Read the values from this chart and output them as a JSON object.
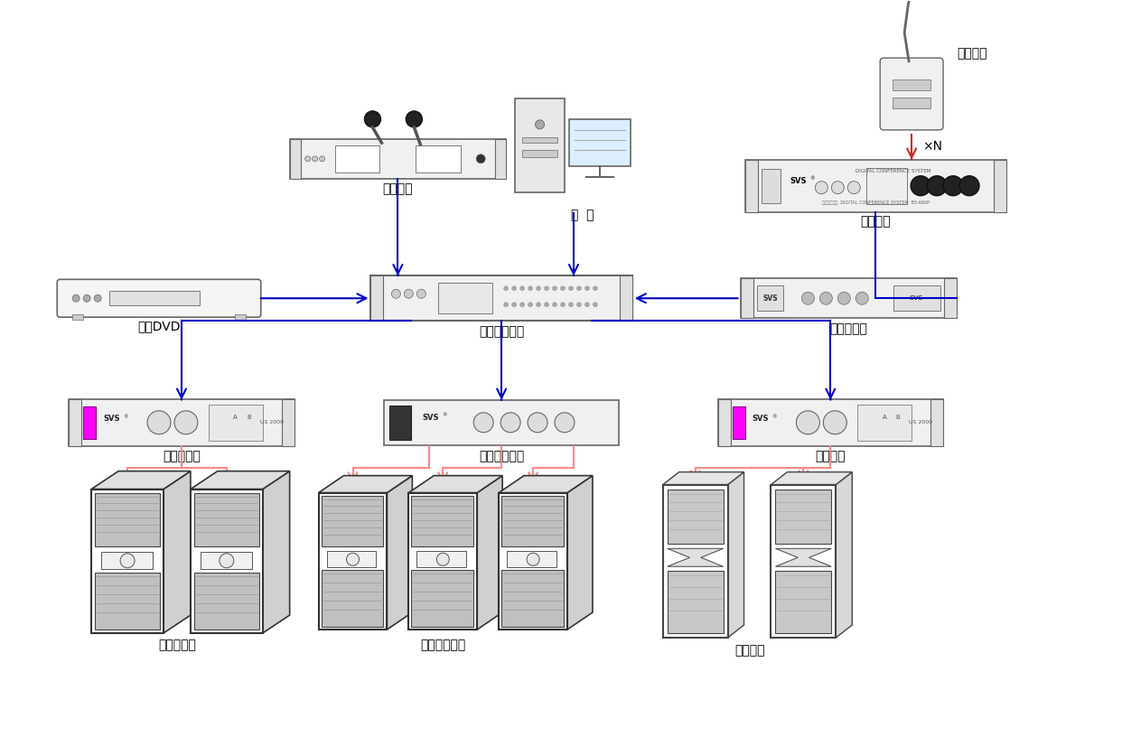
{
  "bg_color": "#ffffff",
  "blue": "#0000cc",
  "red": "#ff8888",
  "dark_red": "#cc2222",
  "gray": "#666666",
  "light_gray": "#f0f0f0",
  "mid_gray": "#cccccc",
  "dark_gray": "#444444",
  "magenta": "#ff00ff",
  "labels": {
    "wireless_mic": "无线话筒",
    "computer": "电  脑",
    "conference_host": "会议主机",
    "speaking_unit": "发言单元",
    "xN": "×N",
    "blu_ray_dvd": "蓝光DVD",
    "digital_matrix": "数字媒体矩阵",
    "feedback_suppressor": "反馈抑制器",
    "main_amp": "主扩声功放",
    "aux_amp": "辅助扩声功放",
    "monitor_amp": "返听功放",
    "main_speakers": "主扩声音筱",
    "aux_speakers": "辅助扩声音筱",
    "monitor_speakers": "返听音筱"
  }
}
